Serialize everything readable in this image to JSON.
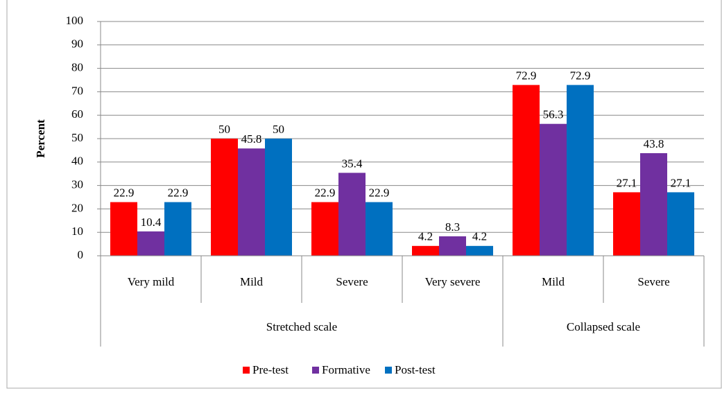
{
  "chart_data": {
    "type": "bar",
    "y_label": "Percent",
    "groups": [
      {
        "label": "Stretched scale",
        "categories": [
          "Very mild",
          "Mild",
          "Severe",
          "Very severe"
        ]
      },
      {
        "label": "Collapsed scale",
        "categories": [
          "Mild",
          "Severe"
        ]
      }
    ],
    "series": [
      {
        "name": "Pre-test",
        "color": "#ff0000",
        "values": [
          22.9,
          50,
          22.9,
          4.2,
          72.9,
          27.1
        ]
      },
      {
        "name": "Formative",
        "color": "#7030a0",
        "values": [
          10.4,
          45.8,
          35.4,
          8.3,
          56.3,
          43.8
        ]
      },
      {
        "name": "Post-test",
        "color": "#0070c0",
        "values": [
          22.9,
          50,
          22.9,
          4.2,
          72.9,
          27.1
        ]
      }
    ],
    "ylim": [
      0,
      100
    ],
    "yticks": [
      0,
      10,
      20,
      30,
      40,
      50,
      60,
      70,
      80,
      90,
      100
    ],
    "grid": true,
    "legend": "bottom"
  }
}
